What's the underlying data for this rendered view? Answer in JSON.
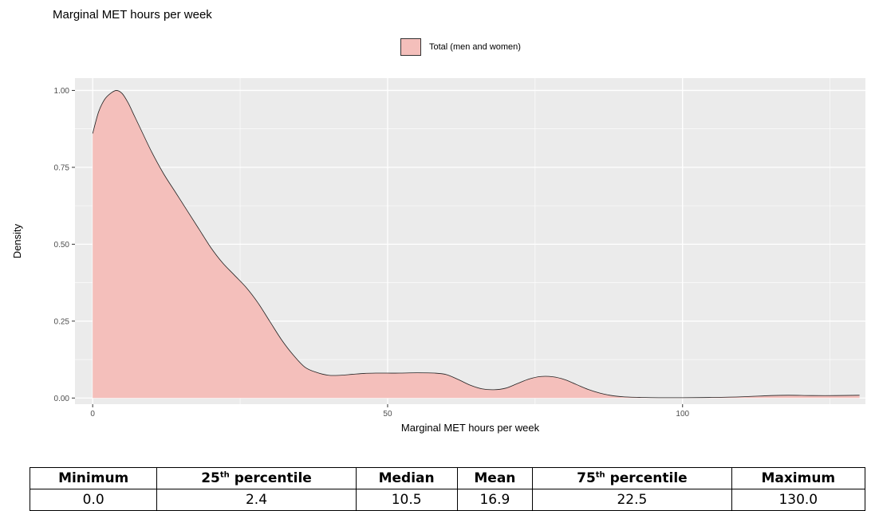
{
  "chart_data": {
    "type": "area",
    "title": "Marginal MET hours per week",
    "xlabel": "Marginal MET hours per week",
    "ylabel": "Density",
    "xlim": [
      -3,
      131
    ],
    "ylim": [
      -0.02,
      1.04
    ],
    "x_ticks": [
      0,
      50,
      100
    ],
    "y_ticks": [
      0.0,
      0.25,
      0.5,
      0.75,
      1.0
    ],
    "x_tick_labels": [
      "0",
      "50",
      "100"
    ],
    "y_tick_labels": [
      "0.00",
      "0.25",
      "0.50",
      "0.75",
      "1.00"
    ],
    "grid": true,
    "legend_position": "top",
    "series": [
      {
        "name": "Total (men and women)",
        "color": "#f4bfbb",
        "x": [
          0,
          1,
          2,
          3,
          4,
          5,
          6,
          7,
          8,
          10,
          12,
          14,
          16,
          18,
          20,
          22,
          24,
          26,
          28,
          30,
          32,
          34,
          36,
          38,
          40,
          42,
          44,
          46,
          48,
          50,
          52,
          55,
          58,
          60,
          62,
          64,
          66,
          68,
          70,
          72,
          74,
          76,
          78,
          80,
          82,
          84,
          86,
          88,
          90,
          93,
          96,
          100,
          105,
          110,
          115,
          118,
          122,
          126,
          130
        ],
        "y": [
          0.86,
          0.93,
          0.97,
          0.99,
          1.0,
          0.99,
          0.96,
          0.92,
          0.88,
          0.8,
          0.73,
          0.67,
          0.61,
          0.55,
          0.49,
          0.44,
          0.4,
          0.36,
          0.31,
          0.25,
          0.19,
          0.14,
          0.1,
          0.083,
          0.074,
          0.074,
          0.077,
          0.08,
          0.081,
          0.081,
          0.081,
          0.082,
          0.081,
          0.076,
          0.06,
          0.042,
          0.03,
          0.027,
          0.032,
          0.047,
          0.062,
          0.07,
          0.069,
          0.06,
          0.044,
          0.028,
          0.016,
          0.008,
          0.004,
          0.002,
          0.001,
          0.001,
          0.002,
          0.004,
          0.008,
          0.009,
          0.008,
          0.008,
          0.009
        ]
      }
    ]
  },
  "stats_table": {
    "headers": [
      {
        "main": "Minimum",
        "sup": "",
        "rest": ""
      },
      {
        "main": "25",
        "sup": "th",
        "rest": " percentile"
      },
      {
        "main": "Median",
        "sup": "",
        "rest": ""
      },
      {
        "main": "Mean",
        "sup": "",
        "rest": ""
      },
      {
        "main": "75",
        "sup": "th",
        "rest": " percentile"
      },
      {
        "main": "Maximum",
        "sup": "",
        "rest": ""
      }
    ],
    "values": [
      "0.0",
      "2.4",
      "10.5",
      "16.9",
      "22.5",
      "130.0"
    ]
  }
}
